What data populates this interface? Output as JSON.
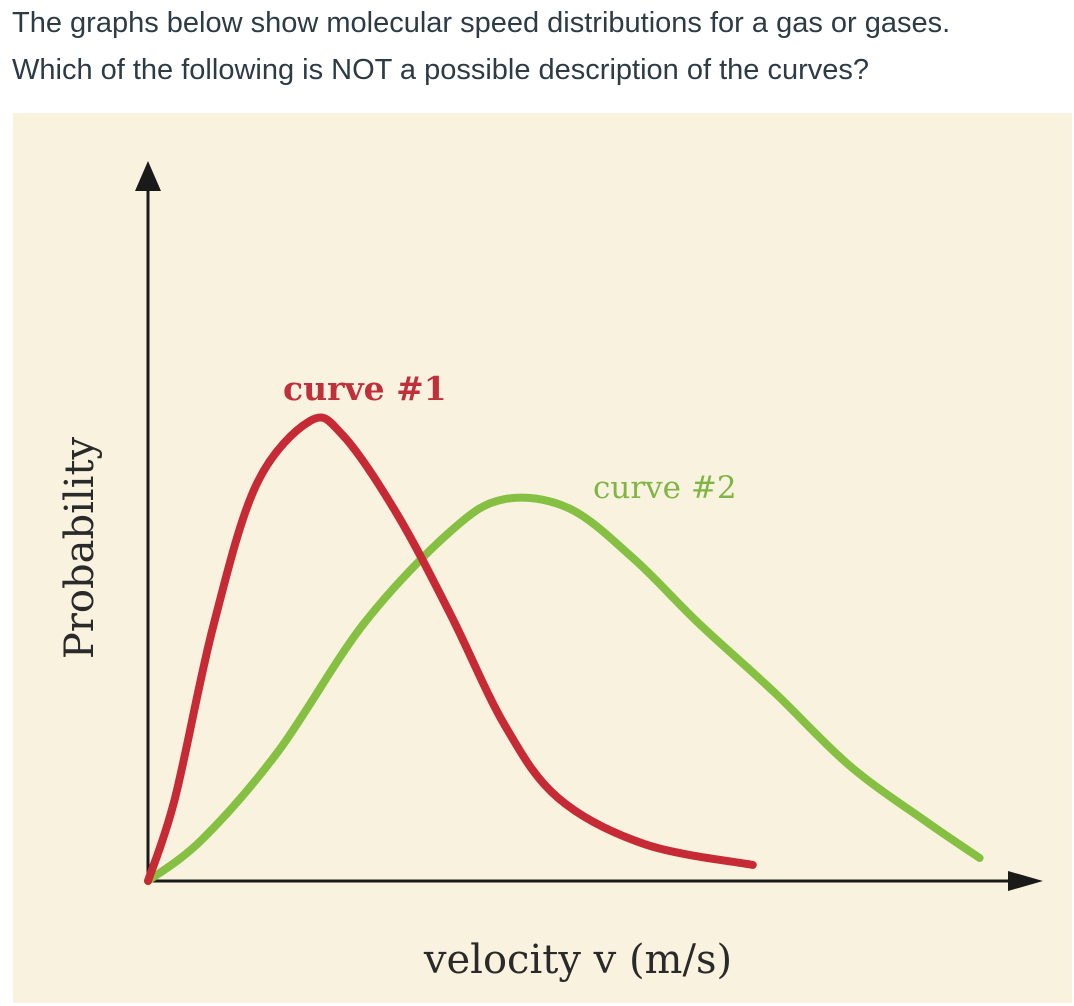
{
  "question": {
    "line1": "The graphs below show molecular speed distributions for a gas or gases.",
    "line2": "Which of the following is NOT a possible description of the curves?"
  },
  "chart_data": {
    "type": "line",
    "xlabel": "velocity v (m/s)",
    "ylabel": "Probability",
    "grid": false,
    "colors": {
      "background": "#f8f2df",
      "axis": "#1a1a1a",
      "curve1": "#c62a35",
      "curve2": "#86c043"
    },
    "series": [
      {
        "name": "curve #1",
        "values": [
          [
            0,
            0
          ],
          [
            0.25,
            0.18
          ],
          [
            0.6,
            0.55
          ],
          [
            1.0,
            0.86
          ],
          [
            1.5,
            1.0
          ],
          [
            1.8,
            0.97
          ],
          [
            2.3,
            0.8
          ],
          [
            2.8,
            0.58
          ],
          [
            3.3,
            0.34
          ],
          [
            3.8,
            0.18
          ],
          [
            4.6,
            0.08
          ],
          [
            5.6,
            0.035
          ]
        ]
      },
      {
        "name": "curve #2",
        "values": [
          [
            0,
            0
          ],
          [
            0.5,
            0.09
          ],
          [
            1.2,
            0.28
          ],
          [
            2.0,
            0.56
          ],
          [
            2.8,
            0.76
          ],
          [
            3.3,
            0.83
          ],
          [
            3.9,
            0.81
          ],
          [
            4.5,
            0.7
          ],
          [
            5.1,
            0.56
          ],
          [
            5.8,
            0.41
          ],
          [
            6.5,
            0.25
          ],
          [
            7.2,
            0.13
          ],
          [
            7.7,
            0.05
          ]
        ]
      }
    ]
  }
}
